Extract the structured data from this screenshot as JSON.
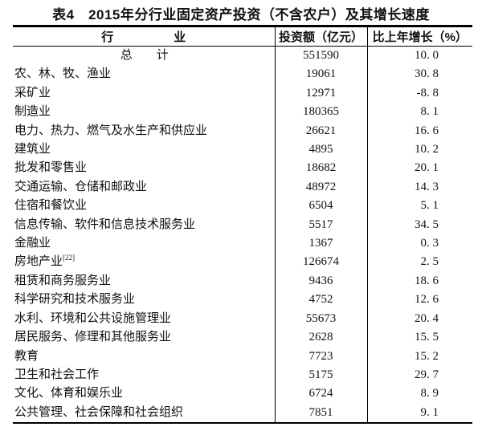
{
  "page": {
    "background_color": "#ffffff",
    "text_color": "#111111",
    "rule_color": "#000000"
  },
  "title": "表4　2015年分行业固定资产投资（不含农户）及其增长速度",
  "table": {
    "headers": {
      "industry": "行　　　　　业",
      "investment": "投资额（亿元）",
      "growth": "比上年增长（%）"
    },
    "rows": [
      {
        "label": "总　　计",
        "align": "center",
        "investment": "551590",
        "growth": "10. 0"
      },
      {
        "label": "农、林、牧、渔业",
        "investment": "19061",
        "growth": "30. 8"
      },
      {
        "label": "采矿业",
        "investment": "12971",
        "growth": "-8. 8"
      },
      {
        "label": "制造业",
        "investment": "180365",
        "growth": "8. 1"
      },
      {
        "label": "电力、热力、燃气及水生产和供应业",
        "investment": "26621",
        "growth": "16. 6"
      },
      {
        "label": "建筑业",
        "investment": "4895",
        "growth": "10. 2"
      },
      {
        "label": "批发和零售业",
        "investment": "18682",
        "growth": "20. 1"
      },
      {
        "label": "交通运输、仓储和邮政业",
        "investment": "48972",
        "growth": "14. 3"
      },
      {
        "label": "住宿和餐饮业",
        "investment": "6504",
        "growth": "5. 1"
      },
      {
        "label": "信息传输、软件和信息技术服务业",
        "investment": "5517",
        "growth": "34. 5"
      },
      {
        "label": "金融业",
        "investment": "1367",
        "growth": "0. 3"
      },
      {
        "label": "房地产业",
        "sup": "[22]",
        "investment": "126674",
        "growth": "2. 5"
      },
      {
        "label": "租赁和商务服务业",
        "investment": "9436",
        "growth": "18. 6"
      },
      {
        "label": "科学研究和技术服务业",
        "investment": "4752",
        "growth": "12. 6"
      },
      {
        "label": "水利、环境和公共设施管理业",
        "investment": "55673",
        "growth": "20. 4"
      },
      {
        "label": "居民服务、修理和其他服务业",
        "investment": "2628",
        "growth": "15. 5"
      },
      {
        "label": "教育",
        "investment": "7723",
        "growth": "15. 2"
      },
      {
        "label": "卫生和社会工作",
        "investment": "5175",
        "growth": "29. 7"
      },
      {
        "label": "文化、体育和娱乐业",
        "investment": "6724",
        "growth": "8. 9"
      },
      {
        "label": "公共管理、社会保障和社会组织",
        "investment": "7851",
        "growth": "9. 1"
      }
    ]
  }
}
